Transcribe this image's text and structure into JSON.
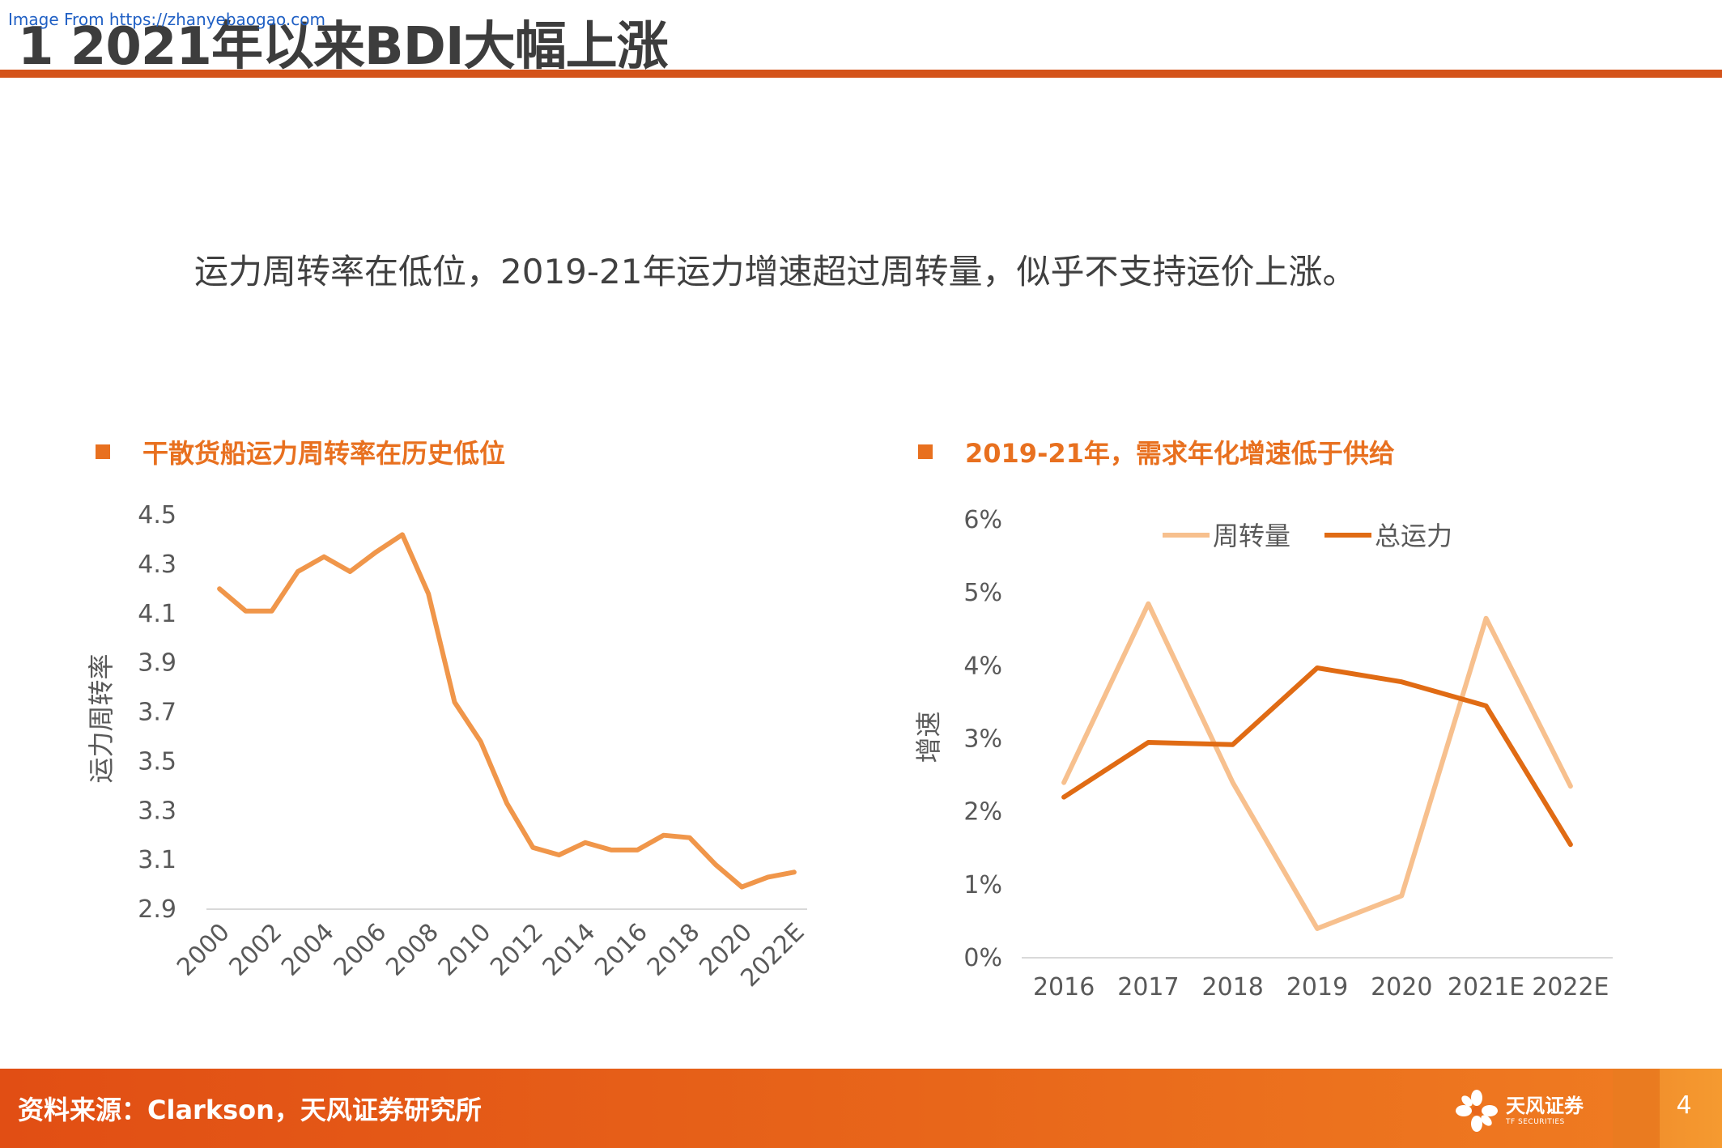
{
  "watermark": "Image From https://zhanyebaogao.com",
  "page_title": "1 2021年以来BDI大幅上涨",
  "subtitle": "运力周转率在低位，2019-21年运力增速超过周转量，似乎不支持运价上涨。",
  "colors": {
    "accent": "#e8701f",
    "title_rule": "#d4531a",
    "line_left": "#f0964a",
    "series_turnover": "#f7c08e",
    "series_capacity": "#e06b14"
  },
  "left_chart": {
    "heading": "干散货船运力周转率在历史低位"
  },
  "right_chart": {
    "heading": "2019-21年，需求年化增速低于供给"
  },
  "chart_data": [
    {
      "type": "line",
      "title": "干散货船运力周转率在历史低位",
      "xlabel": "",
      "ylabel": "运力周转率",
      "ylim": [
        2.9,
        4.5
      ],
      "yticks": [
        "4.5",
        "4.3",
        "4.1",
        "3.9",
        "3.7",
        "3.5",
        "3.3",
        "3.1",
        "2.9"
      ],
      "x": [
        "2000",
        "2001",
        "2002",
        "2003",
        "2004",
        "2005",
        "2006",
        "2007",
        "2008",
        "2009",
        "2010",
        "2011",
        "2012",
        "2013",
        "2014",
        "2015",
        "2016",
        "2017",
        "2018",
        "2019",
        "2020",
        "2021",
        "2022E"
      ],
      "xtick_labels": [
        "2000",
        "2002",
        "2004",
        "2006",
        "2008",
        "2010",
        "2012",
        "2014",
        "2016",
        "2018",
        "2020",
        "2022E"
      ],
      "series": [
        {
          "values": [
            4.2,
            4.11,
            4.11,
            4.27,
            4.33,
            4.27,
            4.35,
            4.42,
            4.18,
            3.74,
            3.58,
            3.33,
            3.15,
            3.12,
            3.17,
            3.14,
            3.14,
            3.2,
            3.19,
            3.08,
            2.99,
            3.03,
            3.05
          ]
        }
      ],
      "grid": false
    },
    {
      "type": "line",
      "title": "2019-21年，需求年化增速低于供给",
      "xlabel": "",
      "ylabel": "增速",
      "ylim": [
        0,
        6
      ],
      "yticks": [
        "6%",
        "5%",
        "4%",
        "3%",
        "2%",
        "1%",
        "0%"
      ],
      "categories": [
        "2016",
        "2017",
        "2018",
        "2019",
        "2020",
        "2021E",
        "2022E"
      ],
      "series": [
        {
          "name": "周转量",
          "values": [
            2.4,
            4.85,
            2.4,
            0.4,
            0.85,
            4.65,
            2.35
          ]
        },
        {
          "name": "总运力",
          "values": [
            2.2,
            2.95,
            2.92,
            3.97,
            3.78,
            3.45,
            1.55
          ]
        }
      ],
      "legend": "top-center",
      "grid": false
    }
  ],
  "footer": {
    "source": "资料来源：Clarkson，天风证券研究所",
    "logo_cn": "天风证券",
    "logo_en": "TF SECURITIES",
    "page_number": "4"
  }
}
